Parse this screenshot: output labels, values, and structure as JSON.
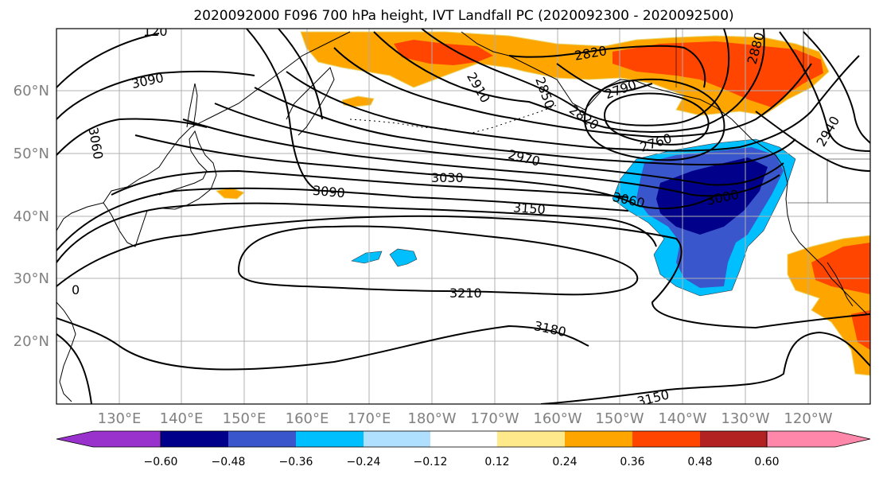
{
  "figure": {
    "title": "2020092000 F096 700 hPa height, IVT Landfall PC (2020092300 - 2020092500)"
  },
  "map": {
    "lat_ticks": [
      "20°N",
      "30°N",
      "40°N",
      "50°N",
      "60°N"
    ],
    "lon_ticks": [
      "130°E",
      "140°E",
      "150°E",
      "160°E",
      "170°E",
      "180°W",
      "170°W",
      "160°W",
      "150°W",
      "140°W",
      "130°W",
      "120°W"
    ],
    "contour_labels": [
      "3090",
      "3060",
      "2820",
      "2910",
      "2850",
      "2820",
      "2760",
      "2970",
      "3030",
      "3090",
      "3060",
      "3000",
      "3150",
      "3210",
      "3180",
      "3150",
      "2940",
      "120",
      "2880",
      "2790",
      "0"
    ],
    "tick_label_color": "#808080",
    "contour_color": "#000000"
  },
  "colorbar": {
    "tick_labels": [
      "−0.60",
      "−0.48",
      "−0.36",
      "−0.24",
      "−0.12",
      "0.12",
      "0.24",
      "0.36",
      "0.48",
      "0.60"
    ],
    "colors": [
      "#9932cc",
      "#00008b",
      "#3a56cc",
      "#00bfff",
      "#b0e0ff",
      "#ffffff",
      "#ffe98a",
      "#ffa500",
      "#ff4500",
      "#b22222",
      "#ff88aa"
    ]
  }
}
